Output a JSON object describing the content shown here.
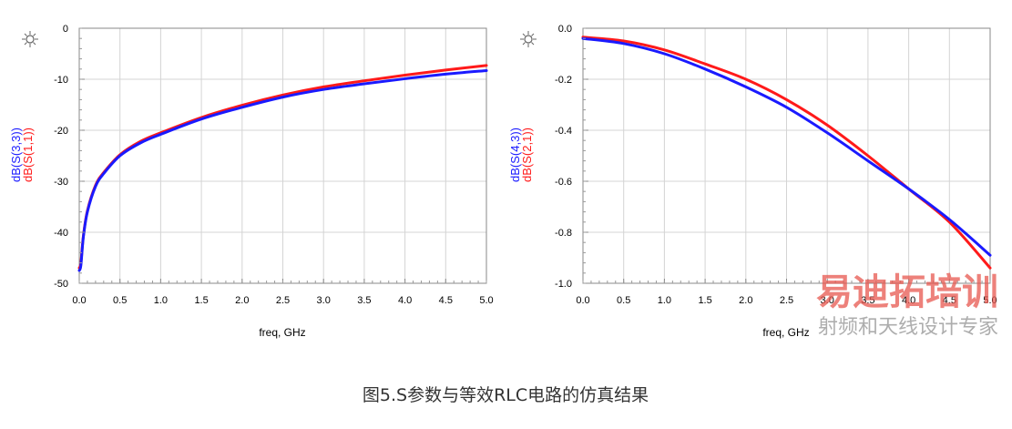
{
  "chart_data": [
    {
      "type": "line",
      "xlabel": "freq, GHz",
      "xlim": [
        0.0,
        5.0
      ],
      "ylim": [
        -50,
        0
      ],
      "x_ticks": [
        "0.0",
        "0.5",
        "1.0",
        "1.5",
        "2.0",
        "2.5",
        "3.0",
        "3.5",
        "4.0",
        "4.5",
        "5.0"
      ],
      "y_ticks": [
        "0",
        "-10",
        "-20",
        "-30",
        "-40",
        "-50"
      ],
      "grid": true,
      "series": [
        {
          "name": "dB(S(3,3))",
          "color": "#1a1aff",
          "x": [
            0.0,
            0.02,
            0.05,
            0.1,
            0.2,
            0.3,
            0.5,
            0.75,
            1.0,
            1.5,
            2.0,
            2.5,
            3.0,
            3.5,
            4.0,
            4.5,
            5.0
          ],
          "y": [
            -47.5,
            -46.5,
            -41.0,
            -36.0,
            -31.0,
            -28.5,
            -25.0,
            -22.5,
            -20.8,
            -17.8,
            -15.5,
            -13.5,
            -12.0,
            -10.9,
            -9.9,
            -9.0,
            -8.3
          ]
        },
        {
          "name": "dB(S(1,1))",
          "color": "#ff1a1a",
          "x": [
            0.0,
            0.02,
            0.05,
            0.1,
            0.2,
            0.3,
            0.5,
            0.75,
            1.0,
            1.5,
            2.0,
            2.5,
            3.0,
            3.5,
            4.0,
            4.5,
            5.0
          ],
          "y": [
            -47.0,
            -46.0,
            -40.8,
            -35.8,
            -30.8,
            -28.3,
            -24.8,
            -22.2,
            -20.5,
            -17.5,
            -15.1,
            -13.1,
            -11.5,
            -10.3,
            -9.2,
            -8.2,
            -7.3
          ]
        }
      ]
    },
    {
      "type": "line",
      "xlabel": "freq, GHz",
      "xlim": [
        0.0,
        5.0
      ],
      "ylim": [
        -1.0,
        0.0
      ],
      "x_ticks": [
        "0.0",
        "0.5",
        "1.0",
        "1.5",
        "2.0",
        "2.5",
        "3.0",
        "3.5",
        "4.0",
        "4.5",
        "5.0"
      ],
      "y_ticks": [
        "0.0",
        "-0.2",
        "-0.4",
        "-0.6",
        "-0.8",
        "-1.0"
      ],
      "grid": true,
      "series": [
        {
          "name": "dB(S(4,3))",
          "color": "#1a1aff",
          "x": [
            0.0,
            0.5,
            1.0,
            1.5,
            2.0,
            2.5,
            3.0,
            3.5,
            4.0,
            4.5,
            5.0
          ],
          "y": [
            -0.04,
            -0.06,
            -0.1,
            -0.16,
            -0.23,
            -0.31,
            -0.41,
            -0.52,
            -0.63,
            -0.75,
            -0.89
          ]
        },
        {
          "name": "dB(S(2,1))",
          "color": "#ff1a1a",
          "x": [
            0.0,
            0.5,
            1.0,
            1.5,
            2.0,
            2.5,
            3.0,
            3.5,
            4.0,
            4.5,
            5.0
          ],
          "y": [
            -0.035,
            -0.05,
            -0.085,
            -0.14,
            -0.2,
            -0.28,
            -0.38,
            -0.5,
            -0.63,
            -0.76,
            -0.94
          ]
        }
      ]
    }
  ],
  "caption": "图5.S参数与等效RLC电路的仿真结果",
  "watermark": {
    "main": "易迪拓培训",
    "sub": "射频和天线设计专家"
  }
}
